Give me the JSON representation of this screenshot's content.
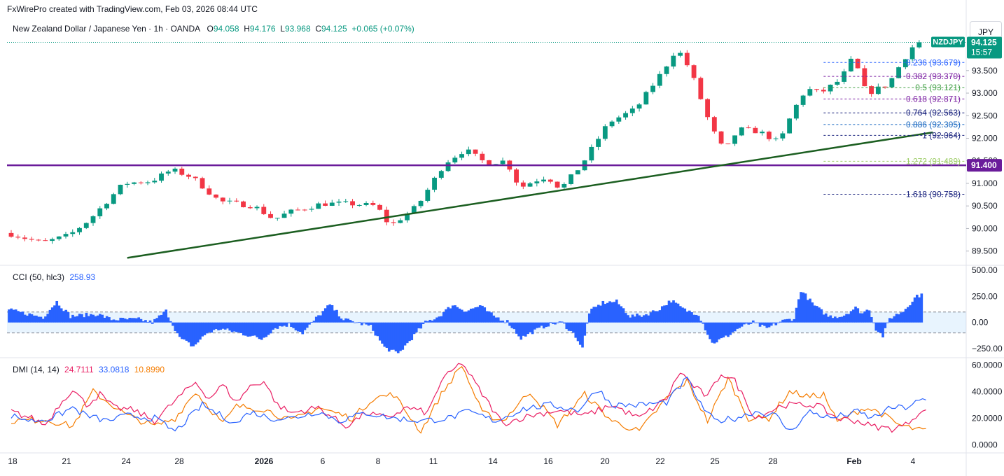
{
  "header": {
    "watermark": "FxWirePro created with TradingView.com, Feb 03, 2026 08:44 UTC",
    "instrument": "New Zealand Dollar / Japanese Yen · 1h · OANDA",
    "open": "94.058",
    "high": "94.176",
    "low": "93.968",
    "close": "94.125",
    "change": "+0.065 (+0.07%)",
    "currency": "JPY"
  },
  "badges": {
    "symbol": "NZDJPY",
    "price": "94.125",
    "countdown": "15:57",
    "level": "91.400"
  },
  "colors": {
    "up": "#089981",
    "down": "#f23645",
    "trend": "#1b5e20",
    "support": "#6a1b9a",
    "cci": "#2962ff",
    "plus_di": "#2962ff",
    "minus_di": "#e91e63",
    "adx": "#f57c00"
  },
  "chart_data": [
    {
      "type": "candlestick",
      "pane": "price",
      "y_ticks": [
        "93.500",
        "93.000",
        "92.500",
        "92.000",
        "91.500",
        "91.000",
        "90.500",
        "90.000",
        "89.500"
      ],
      "ylim": [
        89.2,
        94.35
      ],
      "x_ticks": [
        "18",
        "21",
        "24",
        "28",
        "2026",
        "6",
        "8",
        "11",
        "14",
        "16",
        "20",
        "22",
        "25",
        "28",
        "Feb",
        "4"
      ],
      "path": [
        [
          0,
          89.9
        ],
        [
          5,
          89.68
        ],
        [
          9,
          89.85
        ],
        [
          12,
          90.2
        ],
        [
          17,
          91.0
        ],
        [
          21,
          91.05
        ],
        [
          24,
          91.3
        ],
        [
          27,
          91.14
        ],
        [
          31,
          90.6
        ],
        [
          36,
          90.5
        ],
        [
          39,
          90.2
        ],
        [
          41,
          90.35
        ],
        [
          46,
          90.55
        ],
        [
          50,
          90.55
        ],
        [
          54,
          90.5
        ],
        [
          56,
          90.05
        ],
        [
          60,
          90.5
        ],
        [
          64,
          91.45
        ],
        [
          67,
          91.75
        ],
        [
          70,
          91.45
        ],
        [
          73,
          91.5
        ],
        [
          75,
          90.9
        ],
        [
          77,
          91.05
        ],
        [
          79,
          91.15
        ],
        [
          81,
          90.88
        ],
        [
          84,
          91.4
        ],
        [
          88,
          92.35
        ],
        [
          92,
          92.65
        ],
        [
          96,
          93.5
        ],
        [
          98,
          94.0
        ],
        [
          100,
          93.5
        ],
        [
          103,
          92.25
        ],
        [
          105,
          91.7
        ],
        [
          107,
          92.2
        ],
        [
          110,
          92.15
        ],
        [
          113,
          91.9
        ],
        [
          115,
          92.6
        ],
        [
          117,
          93.1
        ],
        [
          119,
          93.0
        ],
        [
          122,
          93.3
        ],
        [
          124,
          93.85
        ],
        [
          125,
          93.2
        ],
        [
          126,
          93.0
        ],
        [
          129,
          93.2
        ],
        [
          131,
          93.7
        ],
        [
          133,
          94.125
        ]
      ],
      "fib_levels": [
        {
          "ratio": "0.236",
          "price": 93.679,
          "label": "0.236 (93.679)",
          "color": "#2962ff"
        },
        {
          "ratio": "0.382",
          "price": 93.37,
          "label": "0.382 (93.370)",
          "color": "#7b1fa2"
        },
        {
          "ratio": "0.5",
          "price": 93.121,
          "label": "0.5 (93.121)",
          "color": "#43a047"
        },
        {
          "ratio": "0.618",
          "price": 92.871,
          "label": "0.618 (92.871)",
          "color": "#7b1fa2"
        },
        {
          "ratio": "0.764",
          "price": 92.563,
          "label": "0.764 (92.563)",
          "color": "#1a237e"
        },
        {
          "ratio": "0.886",
          "price": 92.305,
          "label": "0.886 (92.305)",
          "color": "#1565c0"
        },
        {
          "ratio": "1",
          "price": 92.064,
          "label": "1 (92.064)",
          "color": "#1a237e"
        },
        {
          "ratio": "1.272",
          "price": 91.489,
          "label": "1.272 (91.489)",
          "color": "#9ccc65"
        },
        {
          "ratio": "1.618",
          "price": 90.758,
          "label": "1.618 (90.758)",
          "color": "#1a237e"
        }
      ],
      "support_level": 91.4,
      "trendline": [
        [
          17,
          89.35
        ],
        [
          135,
          92.13
        ]
      ]
    },
    {
      "type": "histogram",
      "pane": "cci",
      "name": "CCI (50, hlc3)",
      "last_value": "258.93",
      "y_ticks": [
        "500.00",
        "250.00",
        "0.00",
        "−250.00"
      ],
      "ylim": [
        -330,
        540
      ],
      "bands": [
        100,
        -100
      ],
      "path": [
        [
          0,
          120
        ],
        [
          5,
          50
        ],
        [
          7,
          200
        ],
        [
          9,
          60
        ],
        [
          13,
          80
        ],
        [
          15,
          30
        ],
        [
          19,
          30
        ],
        [
          21,
          0
        ],
        [
          23,
          110
        ],
        [
          25,
          -150
        ],
        [
          27,
          -230
        ],
        [
          29,
          -100
        ],
        [
          31,
          -60
        ],
        [
          35,
          -120
        ],
        [
          37,
          -160
        ],
        [
          39,
          -50
        ],
        [
          41,
          -20
        ],
        [
          43,
          -100
        ],
        [
          45,
          40
        ],
        [
          47,
          170
        ],
        [
          49,
          30
        ],
        [
          51,
          0
        ],
        [
          53,
          -40
        ],
        [
          55,
          -240
        ],
        [
          57,
          -300
        ],
        [
          59,
          -150
        ],
        [
          61,
          0
        ],
        [
          63,
          60
        ],
        [
          65,
          170
        ],
        [
          67,
          110
        ],
        [
          69,
          160
        ],
        [
          71,
          60
        ],
        [
          73,
          10
        ],
        [
          75,
          -150
        ],
        [
          77,
          -80
        ],
        [
          79,
          -20
        ],
        [
          81,
          0
        ],
        [
          83,
          -130
        ],
        [
          84,
          -250
        ],
        [
          85,
          100
        ],
        [
          87,
          190
        ],
        [
          89,
          200
        ],
        [
          91,
          60
        ],
        [
          93,
          70
        ],
        [
          95,
          120
        ],
        [
          97,
          210
        ],
        [
          99,
          120
        ],
        [
          101,
          80
        ],
        [
          103,
          -200
        ],
        [
          105,
          -140
        ],
        [
          107,
          -50
        ],
        [
          109,
          0
        ],
        [
          111,
          -60
        ],
        [
          113,
          10
        ],
        [
          115,
          40
        ],
        [
          116,
          310
        ],
        [
          118,
          160
        ],
        [
          120,
          60
        ],
        [
          122,
          60
        ],
        [
          124,
          140
        ],
        [
          125,
          90
        ],
        [
          126,
          130
        ],
        [
          127,
          -60
        ],
        [
          128,
          -130
        ],
        [
          129,
          40
        ],
        [
          131,
          110
        ],
        [
          133,
          259
        ]
      ]
    },
    {
      "type": "line",
      "pane": "dmi",
      "name": "DMI (14, 14)",
      "values_shown": [
        "24.7111",
        "33.0818",
        "10.8990"
      ],
      "y_ticks": [
        "60.0000",
        "40.0000",
        "20.0000",
        "0.0000"
      ],
      "ylim": [
        -5,
        65
      ],
      "series": [
        {
          "key": "adx",
          "path": [
            [
              0,
              18
            ],
            [
              5,
              19
            ],
            [
              9,
              14
            ],
            [
              12,
              40
            ],
            [
              17,
              22
            ],
            [
              21,
              14
            ],
            [
              24,
              20
            ],
            [
              27,
              40
            ],
            [
              31,
              16
            ],
            [
              33,
              29
            ],
            [
              37,
              27
            ],
            [
              41,
              18
            ],
            [
              45,
              28
            ],
            [
              50,
              20
            ],
            [
              53,
              35
            ],
            [
              56,
              38
            ],
            [
              60,
              10
            ],
            [
              63,
              38
            ],
            [
              66,
              60
            ],
            [
              69,
              24
            ],
            [
              72,
              18
            ],
            [
              76,
              40
            ],
            [
              80,
              15
            ],
            [
              84,
              38
            ],
            [
              88,
              18
            ],
            [
              92,
              10
            ],
            [
              96,
              35
            ],
            [
              99,
              48
            ],
            [
              102,
              18
            ],
            [
              105,
              50
            ],
            [
              108,
              20
            ],
            [
              111,
              20
            ],
            [
              114,
              40
            ],
            [
              117,
              36
            ],
            [
              119,
              38
            ],
            [
              121,
              17
            ],
            [
              125,
              28
            ],
            [
              127,
              25
            ],
            [
              130,
              15
            ],
            [
              133,
              11
            ]
          ]
        },
        {
          "key": "minus_di",
          "path": [
            [
              0,
              25
            ],
            [
              3,
              20
            ],
            [
              5,
              15
            ],
            [
              7,
              30
            ],
            [
              9,
              42
            ],
            [
              11,
              30
            ],
            [
              13,
              38
            ],
            [
              15,
              28
            ],
            [
              18,
              26
            ],
            [
              21,
              18
            ],
            [
              23,
              28
            ],
            [
              25,
              38
            ],
            [
              27,
              47
            ],
            [
              29,
              35
            ],
            [
              31,
              45
            ],
            [
              33,
              32
            ],
            [
              35,
              44
            ],
            [
              37,
              48
            ],
            [
              39,
              30
            ],
            [
              41,
              24
            ],
            [
              45,
              28
            ],
            [
              49,
              14
            ],
            [
              52,
              24
            ],
            [
              55,
              20
            ],
            [
              58,
              28
            ],
            [
              61,
              24
            ],
            [
              63,
              48
            ],
            [
              66,
              62
            ],
            [
              69,
              38
            ],
            [
              72,
              16
            ],
            [
              76,
              22
            ],
            [
              80,
              26
            ],
            [
              84,
              22
            ],
            [
              88,
              30
            ],
            [
              92,
              20
            ],
            [
              96,
              35
            ],
            [
              98,
              55
            ],
            [
              100,
              44
            ],
            [
              102,
              36
            ],
            [
              104,
              54
            ],
            [
              106,
              48
            ],
            [
              109,
              20
            ],
            [
              113,
              30
            ],
            [
              116,
              30
            ],
            [
              118,
              30
            ],
            [
              121,
              20
            ],
            [
              124,
              18
            ],
            [
              126,
              14
            ],
            [
              129,
              12
            ],
            [
              131,
              15
            ],
            [
              133,
              24.7
            ]
          ]
        },
        {
          "key": "plus_di",
          "path": [
            [
              0,
              22
            ],
            [
              3,
              18
            ],
            [
              6,
              20
            ],
            [
              9,
              28
            ],
            [
              11,
              22
            ],
            [
              14,
              18
            ],
            [
              17,
              22
            ],
            [
              21,
              20
            ],
            [
              24,
              10
            ],
            [
              28,
              30
            ],
            [
              30,
              24
            ],
            [
              33,
              16
            ],
            [
              35,
              25
            ],
            [
              38,
              20
            ],
            [
              41,
              20
            ],
            [
              45,
              25
            ],
            [
              48,
              18
            ],
            [
              52,
              24
            ],
            [
              56,
              20
            ],
            [
              60,
              18
            ],
            [
              64,
              20
            ],
            [
              67,
              25
            ],
            [
              71,
              18
            ],
            [
              75,
              27
            ],
            [
              79,
              30
            ],
            [
              83,
              26
            ],
            [
              86,
              42
            ],
            [
              88,
              30
            ],
            [
              92,
              30
            ],
            [
              96,
              32
            ],
            [
              99,
              50
            ],
            [
              101,
              30
            ],
            [
              103,
              18
            ],
            [
              106,
              20
            ],
            [
              109,
              25
            ],
            [
              112,
              22
            ],
            [
              114,
              10
            ],
            [
              117,
              25
            ],
            [
              120,
              20
            ],
            [
              124,
              25
            ],
            [
              126,
              20
            ],
            [
              129,
              28
            ],
            [
              131,
              28
            ],
            [
              133,
              33
            ]
          ]
        }
      ]
    }
  ]
}
